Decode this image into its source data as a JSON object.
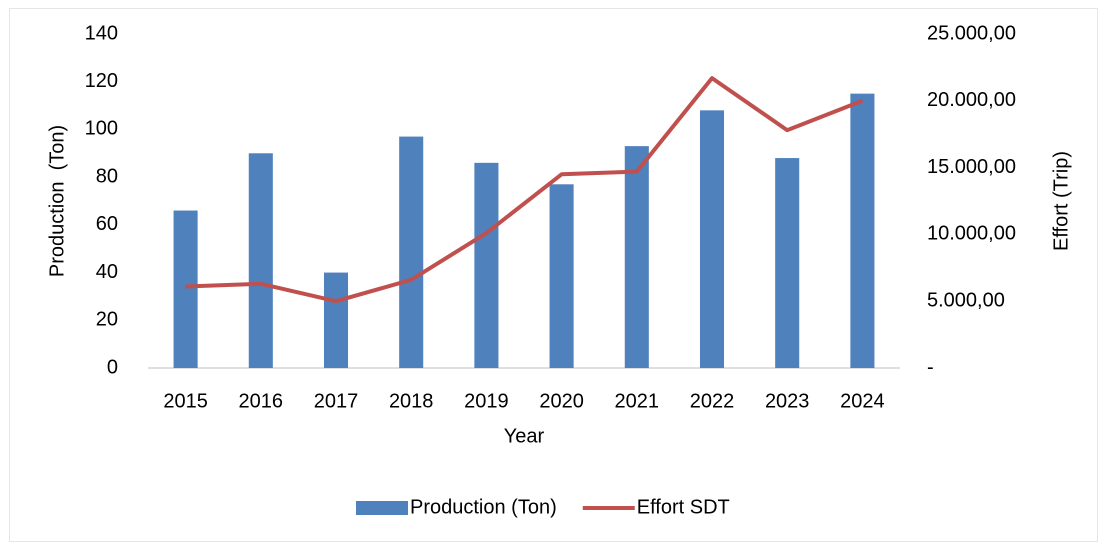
{
  "chart_data": {
    "type": "bar",
    "categories": [
      "2015",
      "2016",
      "2017",
      "2018",
      "2019",
      "2020",
      "2021",
      "2022",
      "2023",
      "2024"
    ],
    "series": [
      {
        "name": "Production (Ton)",
        "color": "#4f81bd",
        "values": [
          66,
          90,
          40,
          97,
          86,
          77,
          93,
          108,
          88,
          115
        ]
      },
      {
        "name": "Effort SDT",
        "color": "#c0504d",
        "type": "line",
        "axis": "y2",
        "values": [
          6100,
          6300,
          5000,
          6600,
          10100,
          14500,
          14700,
          21700,
          17800,
          20000
        ]
      }
    ],
    "xlabel": "Year",
    "ylabel": "Production  (Ton)",
    "y2label": "Effort (Trip)",
    "ylim": [
      0,
      140
    ],
    "yticks": [
      0,
      20,
      40,
      60,
      80,
      100,
      120,
      140
    ],
    "y2lim": [
      0,
      25000
    ],
    "y2ticks": [
      {
        "value": 0,
        "label": "-"
      },
      {
        "value": 5000,
        "label": "5.000,00"
      },
      {
        "value": 10000,
        "label": "10.000,00"
      },
      {
        "value": 15000,
        "label": "15.000,00"
      },
      {
        "value": 20000,
        "label": "20.000,00"
      },
      {
        "value": 25000,
        "label": "25.000,00"
      }
    ],
    "legend": "bottom",
    "grid": false
  }
}
